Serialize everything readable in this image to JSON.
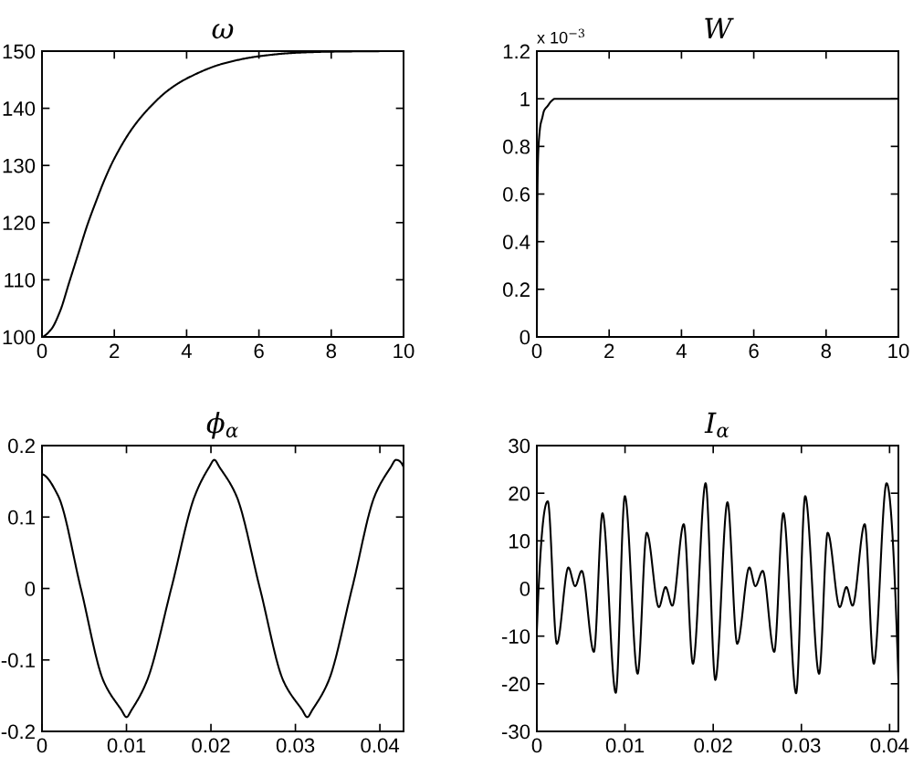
{
  "chart_data": [
    {
      "type": "line",
      "title": "ω",
      "color": "#000000",
      "x": [
        0,
        0.25,
        0.5,
        0.75,
        1.0,
        1.25,
        1.5,
        1.75,
        2.0,
        2.5,
        3.0,
        3.5,
        4.0,
        5.0,
        6.0,
        7.0,
        8.0,
        10
      ],
      "values": [
        100,
        101.3,
        104.5,
        109.5,
        114.5,
        119.5,
        123.8,
        127.8,
        131.2,
        136.5,
        140.3,
        143.2,
        145.2,
        147.8,
        149.1,
        149.7,
        149.9,
        150
      ],
      "xlim": [
        0,
        10
      ],
      "ylim": [
        100,
        150
      ],
      "xticks": [
        0,
        2,
        4,
        6,
        8,
        10
      ],
      "yticks": [
        100,
        110,
        120,
        130,
        140,
        150
      ]
    },
    {
      "type": "line",
      "title": "W",
      "color": "#000000",
      "x": [
        0,
        0.01,
        0.02,
        0.04,
        0.07,
        0.1,
        0.15,
        0.2,
        0.3,
        0.4,
        0.5,
        0.7,
        1,
        10
      ],
      "values": [
        0,
        0.45,
        0.65,
        0.78,
        0.85,
        0.89,
        0.92,
        0.95,
        0.97,
        0.99,
        1.0,
        1,
        1,
        1
      ],
      "xlim": [
        0,
        10
      ],
      "ylim": [
        0,
        1.2
      ],
      "xticks": [
        0,
        2,
        4,
        6,
        8,
        10
      ],
      "yticks": [
        0,
        0.2,
        0.4,
        0.6,
        0.8,
        1,
        1.2
      ],
      "annotations": [
        "x 10$^{−3}$"
      ]
    },
    {
      "type": "line",
      "title": "ϕ$_{α}$",
      "color": "#000000",
      "x": [
        0,
        0.0019,
        0.0046,
        0.0073,
        0.0094,
        0.01,
        0.0106,
        0.0124,
        0.0153,
        0.0181,
        0.0198,
        0.0204,
        0.021,
        0.023,
        0.0258,
        0.0286,
        0.0308,
        0.0314,
        0.032,
        0.0339,
        0.0367,
        0.0394,
        0.0413,
        0.0419,
        0.0428
      ],
      "values": [
        0.16,
        0.13,
        0,
        -0.13,
        -0.17,
        -0.18,
        -0.17,
        -0.13,
        0,
        0.13,
        0.17,
        0.18,
        0.17,
        0.13,
        0,
        -0.13,
        -0.17,
        -0.18,
        -0.17,
        -0.13,
        0,
        0.13,
        0.17,
        0.18,
        0.17
      ],
      "xlim": [
        0,
        0.0428
      ],
      "ylim": [
        -0.2,
        0.2
      ],
      "xticks": [
        0,
        0.01,
        0.02,
        0.03,
        0.04
      ],
      "yticks": [
        -0.2,
        -0.1,
        0,
        0.1,
        0.2
      ]
    },
    {
      "type": "line",
      "title": "I$_{α}$",
      "color": "#000000",
      "x": [
        0,
        0.00124,
        0.00227,
        0.00358,
        0.00434,
        0.00509,
        0.00647,
        0.00744,
        0.00895,
        0.00998,
        0.01143,
        0.01246,
        0.01384,
        0.0146,
        0.01536,
        0.01666,
        0.0177,
        0.01914,
        0.02024,
        0.02162,
        0.02272,
        0.0241,
        0.02478,
        0.02561,
        0.02692,
        0.02795,
        0.0294,
        0.03043,
        0.03201,
        0.03298,
        0.03435,
        0.03511,
        0.0358,
        0.03718,
        0.03821,
        0.03966,
        0.041
      ],
      "values": [
        -9,
        18.3,
        -11.6,
        4.4,
        0.5,
        3.7,
        -13.3,
        15.8,
        -21.9,
        19.4,
        -17.9,
        11.7,
        -3.9,
        0.3,
        -3.6,
        13.5,
        -15.8,
        22.1,
        -19.2,
        18.1,
        -11.6,
        4.4,
        0.5,
        3.7,
        -13.3,
        15.8,
        -22,
        19.4,
        -17.9,
        11.7,
        -3.9,
        0.3,
        -3.6,
        13.5,
        -15.8,
        22.1,
        -19
      ],
      "xlim": [
        0,
        0.041
      ],
      "ylim": [
        -30,
        30
      ],
      "xticks": [
        0,
        0.01,
        0.02,
        0.03,
        0.04
      ],
      "yticks": [
        -30,
        -20,
        -10,
        0,
        10,
        20,
        30
      ]
    }
  ]
}
